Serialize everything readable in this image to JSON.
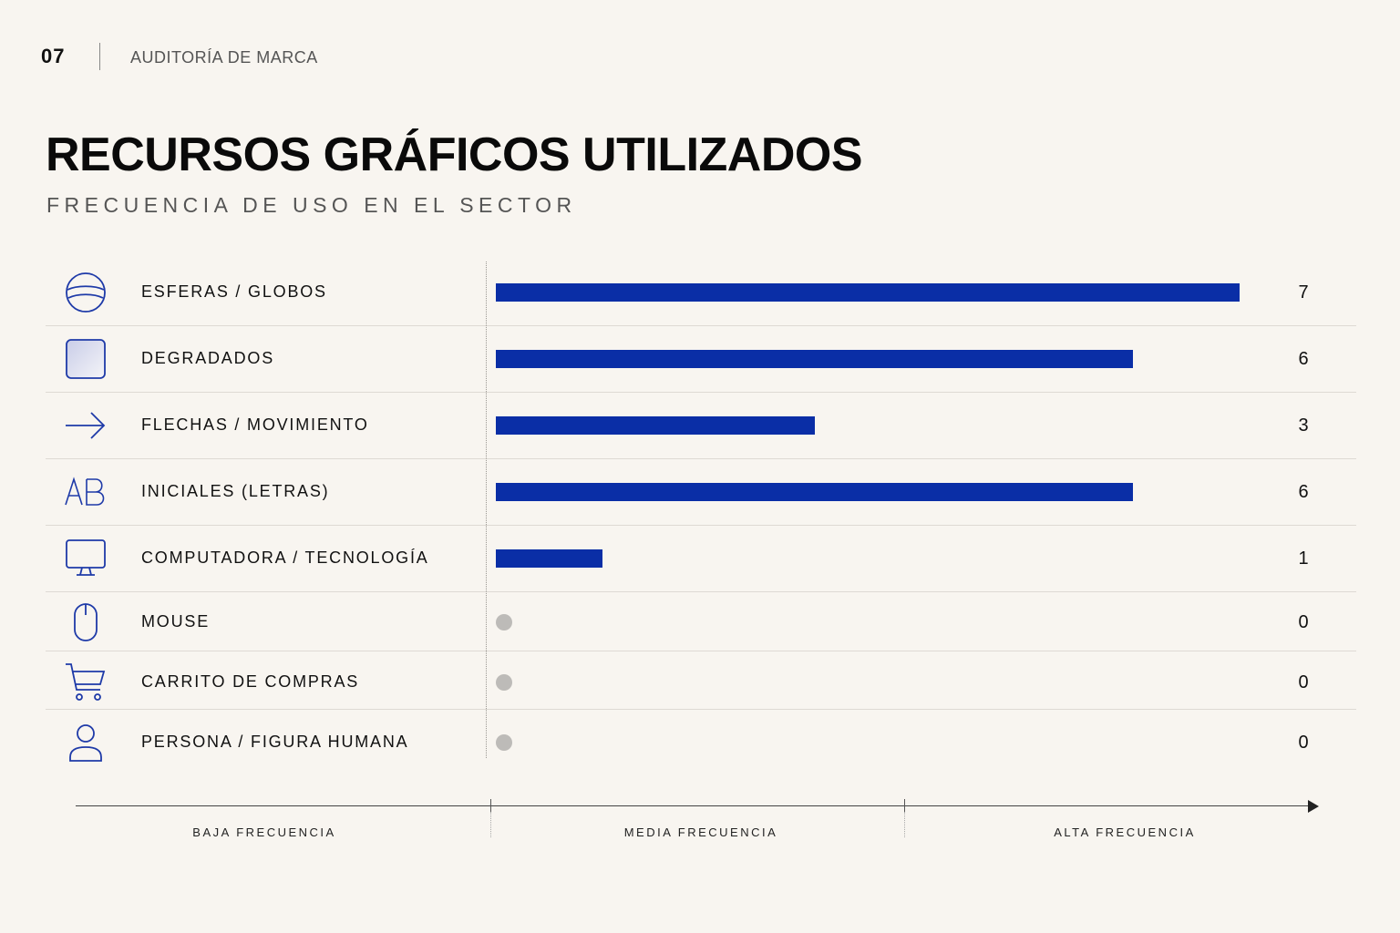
{
  "header": {
    "page_number": "07",
    "section": "AUDITORÍA DE MARCA"
  },
  "title": "RECURSOS GRÁFICOS UTILIZADOS",
  "subtitle": "FRECUENCIA DE USO EN EL SECTOR",
  "colors": {
    "bar": "#0a2ea6",
    "icon": "#1e3aa8",
    "zero_dot": "#bdbbb8",
    "background": "#f8f5f0"
  },
  "chart_data": {
    "type": "bar",
    "orientation": "horizontal",
    "categories": [
      "ESFERAS / GLOBOS",
      "DEGRADADOS",
      "FLECHAS / MOVIMIENTO",
      "INICIALES (LETRAS)",
      "COMPUTADORA / TECNOLOGÍA",
      "MOUSE",
      "CARRITO DE COMPRAS",
      "PERSONA / FIGURA HUMANA"
    ],
    "icons": [
      "globe-icon",
      "gradient-square-icon",
      "arrow-right-icon",
      "initials-ab-icon",
      "computer-monitor-icon",
      "mouse-icon",
      "shopping-cart-icon",
      "person-icon"
    ],
    "values": [
      7,
      6,
      3,
      6,
      1,
      0,
      0,
      0
    ],
    "value_labels": [
      "7",
      "6",
      "3",
      "6",
      "1",
      "0",
      "0",
      "0"
    ],
    "xlim": [
      0,
      7
    ],
    "x_axis_bands": [
      "BAJA FRECUENCIA",
      "MEDIA FRECUENCIA",
      "ALTA FRECUENCIA"
    ],
    "grid": false,
    "legend": "none"
  }
}
